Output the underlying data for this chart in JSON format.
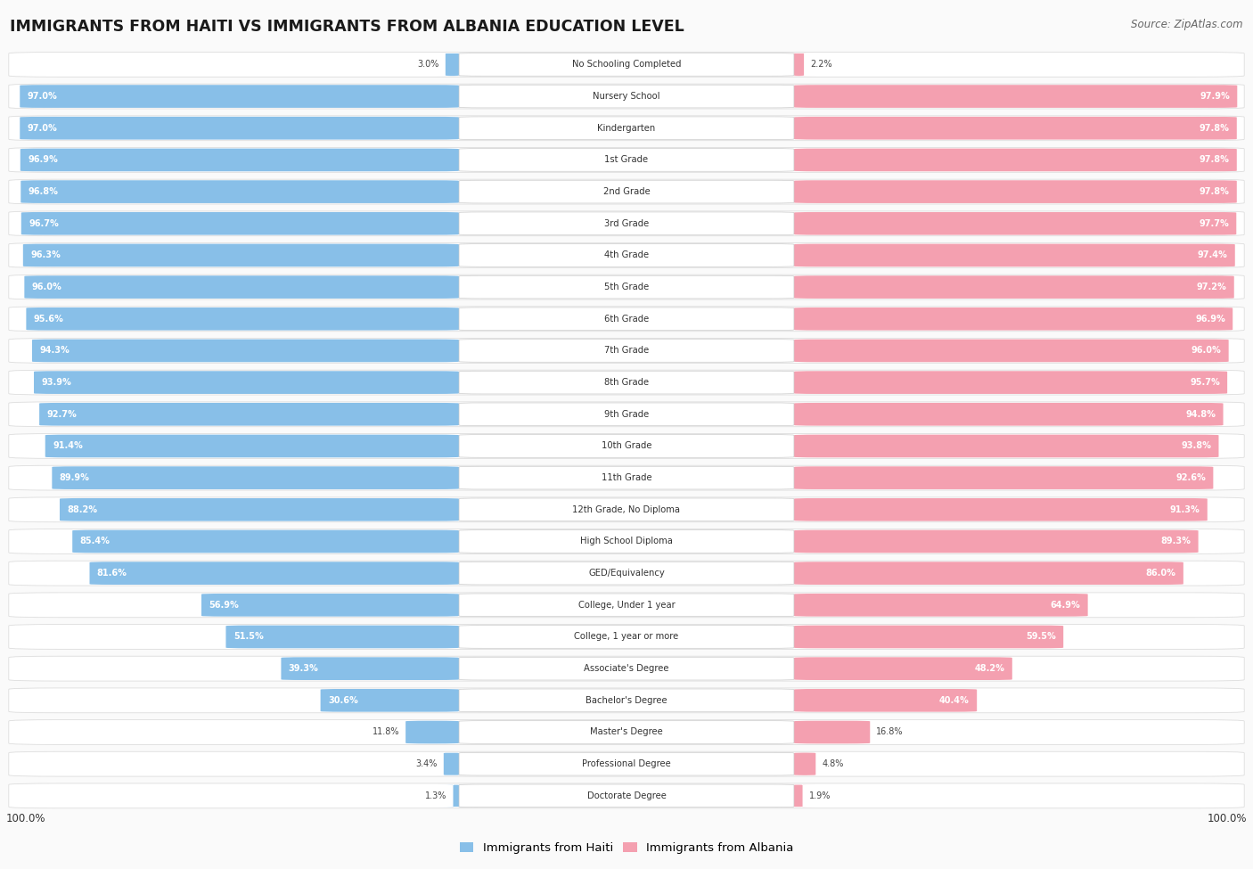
{
  "title": "IMMIGRANTS FROM HAITI VS IMMIGRANTS FROM ALBANIA EDUCATION LEVEL",
  "source": "Source: ZipAtlas.com",
  "categories": [
    "No Schooling Completed",
    "Nursery School",
    "Kindergarten",
    "1st Grade",
    "2nd Grade",
    "3rd Grade",
    "4th Grade",
    "5th Grade",
    "6th Grade",
    "7th Grade",
    "8th Grade",
    "9th Grade",
    "10th Grade",
    "11th Grade",
    "12th Grade, No Diploma",
    "High School Diploma",
    "GED/Equivalency",
    "College, Under 1 year",
    "College, 1 year or more",
    "Associate's Degree",
    "Bachelor's Degree",
    "Master's Degree",
    "Professional Degree",
    "Doctorate Degree"
  ],
  "haiti_values": [
    3.0,
    97.0,
    97.0,
    96.9,
    96.8,
    96.7,
    96.3,
    96.0,
    95.6,
    94.3,
    93.9,
    92.7,
    91.4,
    89.9,
    88.2,
    85.4,
    81.6,
    56.9,
    51.5,
    39.3,
    30.6,
    11.8,
    3.4,
    1.3
  ],
  "albania_values": [
    2.2,
    97.9,
    97.8,
    97.8,
    97.8,
    97.7,
    97.4,
    97.2,
    96.9,
    96.0,
    95.7,
    94.8,
    93.8,
    92.6,
    91.3,
    89.3,
    86.0,
    64.9,
    59.5,
    48.2,
    40.4,
    16.8,
    4.8,
    1.9
  ],
  "haiti_color": "#88BFE8",
  "albania_color": "#F4A0B0",
  "row_bg_color": "#EFEFEF",
  "label_color": "#444444",
  "value_color_inside": "#333333",
  "legend_haiti": "Immigrants from Haiti",
  "legend_albania": "Immigrants from Albania",
  "max_value": 100.0,
  "fig_bg": "#FAFAFA"
}
